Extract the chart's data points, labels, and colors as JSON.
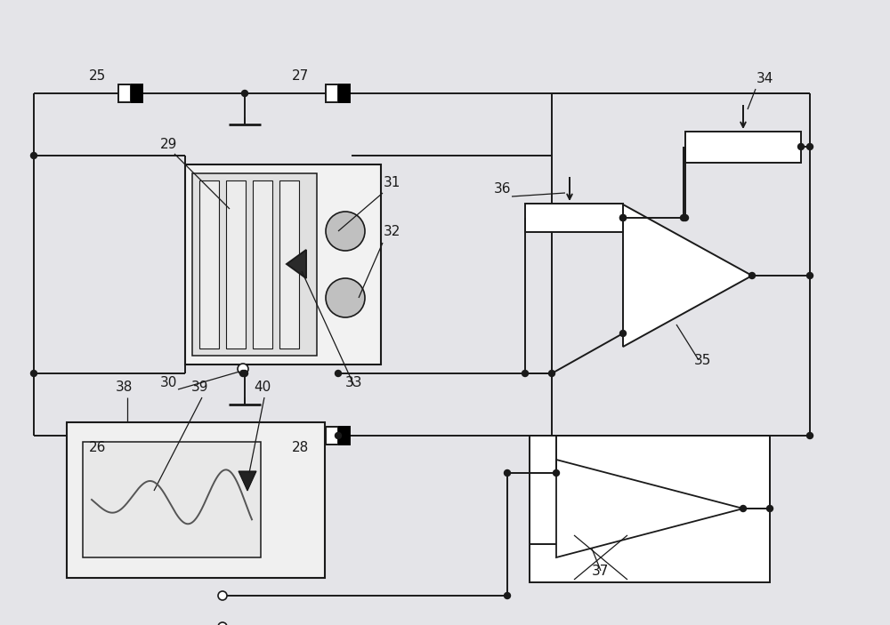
{
  "bg_color": "#e4e4e8",
  "line_color": "#1a1a1a",
  "fig_width": 10.0,
  "fig_height": 7.03,
  "lw": 1.4,
  "dot_r": 3.5
}
